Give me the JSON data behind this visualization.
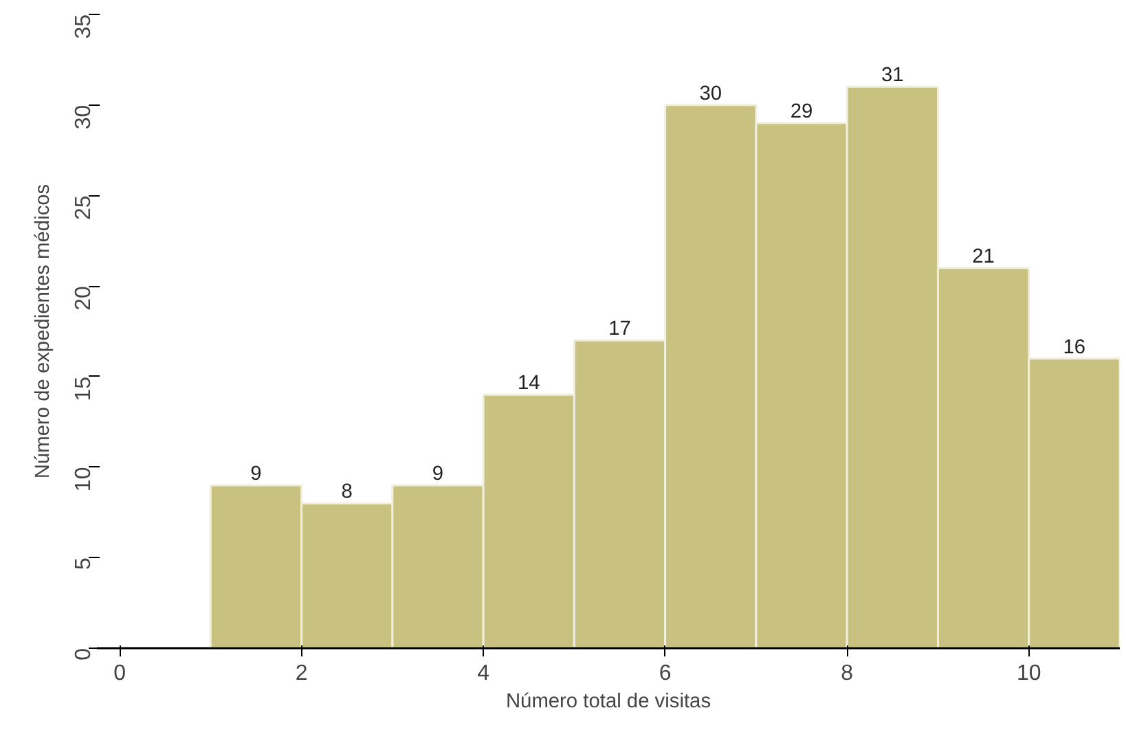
{
  "chart_data": {
    "type": "histogram",
    "xlabel": "Número total de visitas",
    "ylabel": "Número de expedientes médicos",
    "bins": [
      0,
      1,
      2,
      3,
      4,
      5,
      6,
      7,
      8,
      9,
      10,
      11
    ],
    "values": [
      0,
      9,
      8,
      9,
      14,
      17,
      30,
      29,
      31,
      21,
      16
    ],
    "value_labels": [
      null,
      "9",
      "8",
      "9",
      "14",
      "17",
      "30",
      "29",
      "31",
      "21",
      "16"
    ],
    "color": "#c8c17f",
    "xlim": [
      -0.25,
      11
    ],
    "xticks": [
      0,
      2,
      4,
      6,
      8,
      10
    ],
    "ylim": [
      0,
      35
    ],
    "yticks": [
      0,
      5,
      10,
      15,
      20,
      25,
      30,
      35
    ],
    "grid": false
  }
}
